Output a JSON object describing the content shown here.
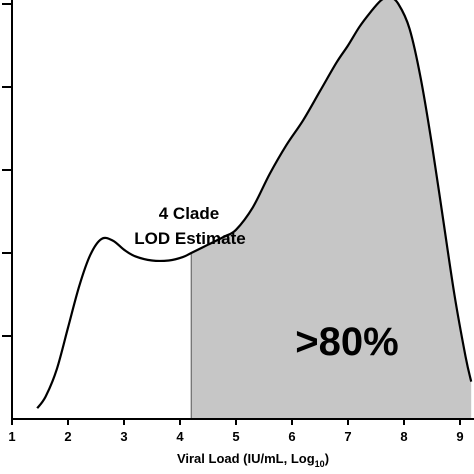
{
  "chart_data": {
    "type": "area",
    "xlabel_main": "Viral Load (IU/mL, Log",
    "xlabel_sub": "10",
    "xlabel_close": ")",
    "ylabel": "",
    "xlim": [
      1,
      9.2
    ],
    "ylim": [
      0,
      5
    ],
    "x_ticks": [
      1,
      2,
      3,
      4,
      5,
      6,
      7,
      8,
      9
    ],
    "y_ticks": [
      0,
      1,
      2,
      3,
      4,
      5
    ],
    "grid": false,
    "curve": {
      "x": [
        1.45,
        1.6,
        1.8,
        2.0,
        2.2,
        2.4,
        2.6,
        2.8,
        3.0,
        3.2,
        3.5,
        3.8,
        4.05,
        4.2,
        4.5,
        4.8,
        5.0,
        5.3,
        5.6,
        5.9,
        6.2,
        6.5,
        6.8,
        7.0,
        7.2,
        7.4,
        7.6,
        7.75,
        7.9,
        8.1,
        8.3,
        8.5,
        8.7,
        8.9,
        9.1,
        9.2
      ],
      "y": [
        0.13,
        0.27,
        0.6,
        1.1,
        1.6,
        1.98,
        2.17,
        2.15,
        2.04,
        1.96,
        1.91,
        1.91,
        1.95,
        2.0,
        2.1,
        2.2,
        2.28,
        2.55,
        2.95,
        3.3,
        3.6,
        3.95,
        4.3,
        4.5,
        4.72,
        4.9,
        5.05,
        5.08,
        5.0,
        4.7,
        4.1,
        3.3,
        2.4,
        1.5,
        0.75,
        0.45
      ]
    },
    "shaded_from_x": 4.2,
    "shade_color": "#c6c6c6",
    "line_color": "#000000",
    "annotations": {
      "lod_line1": "4 Clade",
      "lod_line2": "LOD Estimate",
      "shaded_label": ">80%"
    }
  }
}
